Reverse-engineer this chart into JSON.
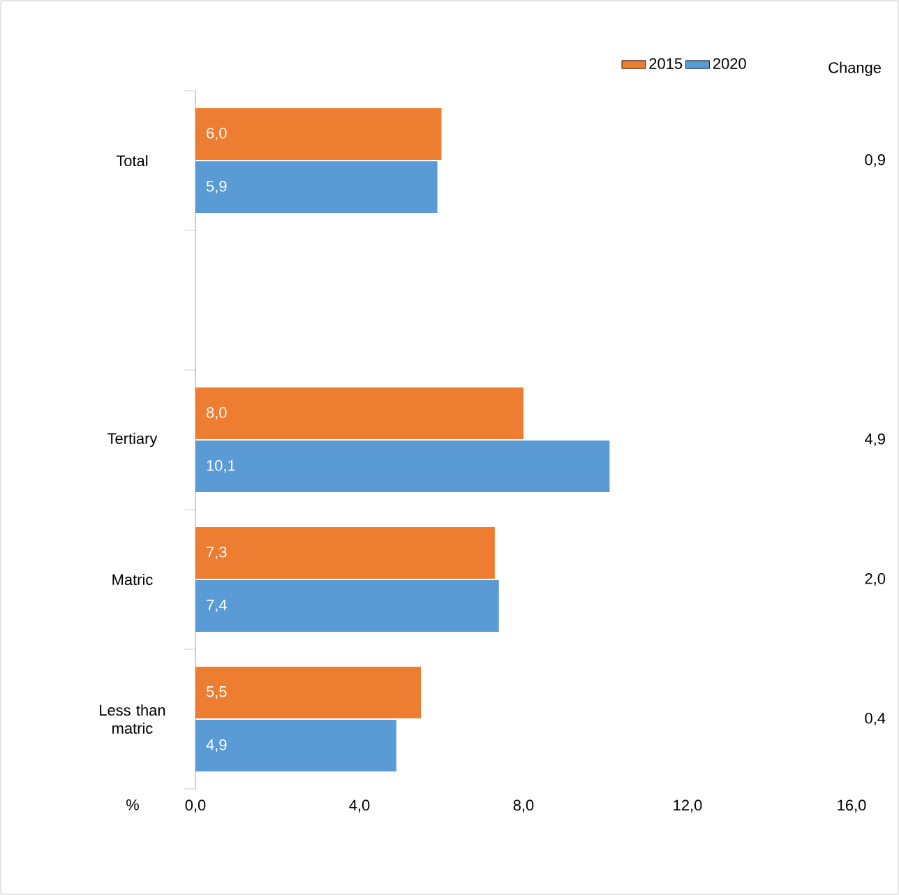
{
  "chart_data": {
    "type": "bar",
    "orientation": "horizontal",
    "categories": [
      "Total",
      null,
      "Tertiary",
      "Matric",
      "Less than matric"
    ],
    "series": [
      {
        "name": "2015",
        "color": "#ed7d31",
        "values": [
          6.0,
          null,
          8.0,
          7.3,
          5.5
        ],
        "value_labels": [
          "6,0",
          null,
          "8,0",
          "7,3",
          "5,5"
        ]
      },
      {
        "name": "2020",
        "color": "#5b9bd5",
        "values": [
          5.9,
          null,
          10.1,
          7.4,
          4.9
        ],
        "value_labels": [
          "5,9",
          null,
          "10,1",
          "7,4",
          "4,9"
        ]
      }
    ],
    "xlabel": "%",
    "xlim": [
      0,
      16
    ],
    "xticks": [
      {
        "value": 0,
        "label": "0,0"
      },
      {
        "value": 4,
        "label": "4,0"
      },
      {
        "value": 8,
        "label": "8,0"
      },
      {
        "value": 12,
        "label": "12,0"
      },
      {
        "value": 16,
        "label": "16,0"
      }
    ],
    "annotations": [
      "Change",
      "0,9",
      "4,9",
      "2,0",
      "0,4"
    ],
    "legend": "top right",
    "grid": false
  }
}
